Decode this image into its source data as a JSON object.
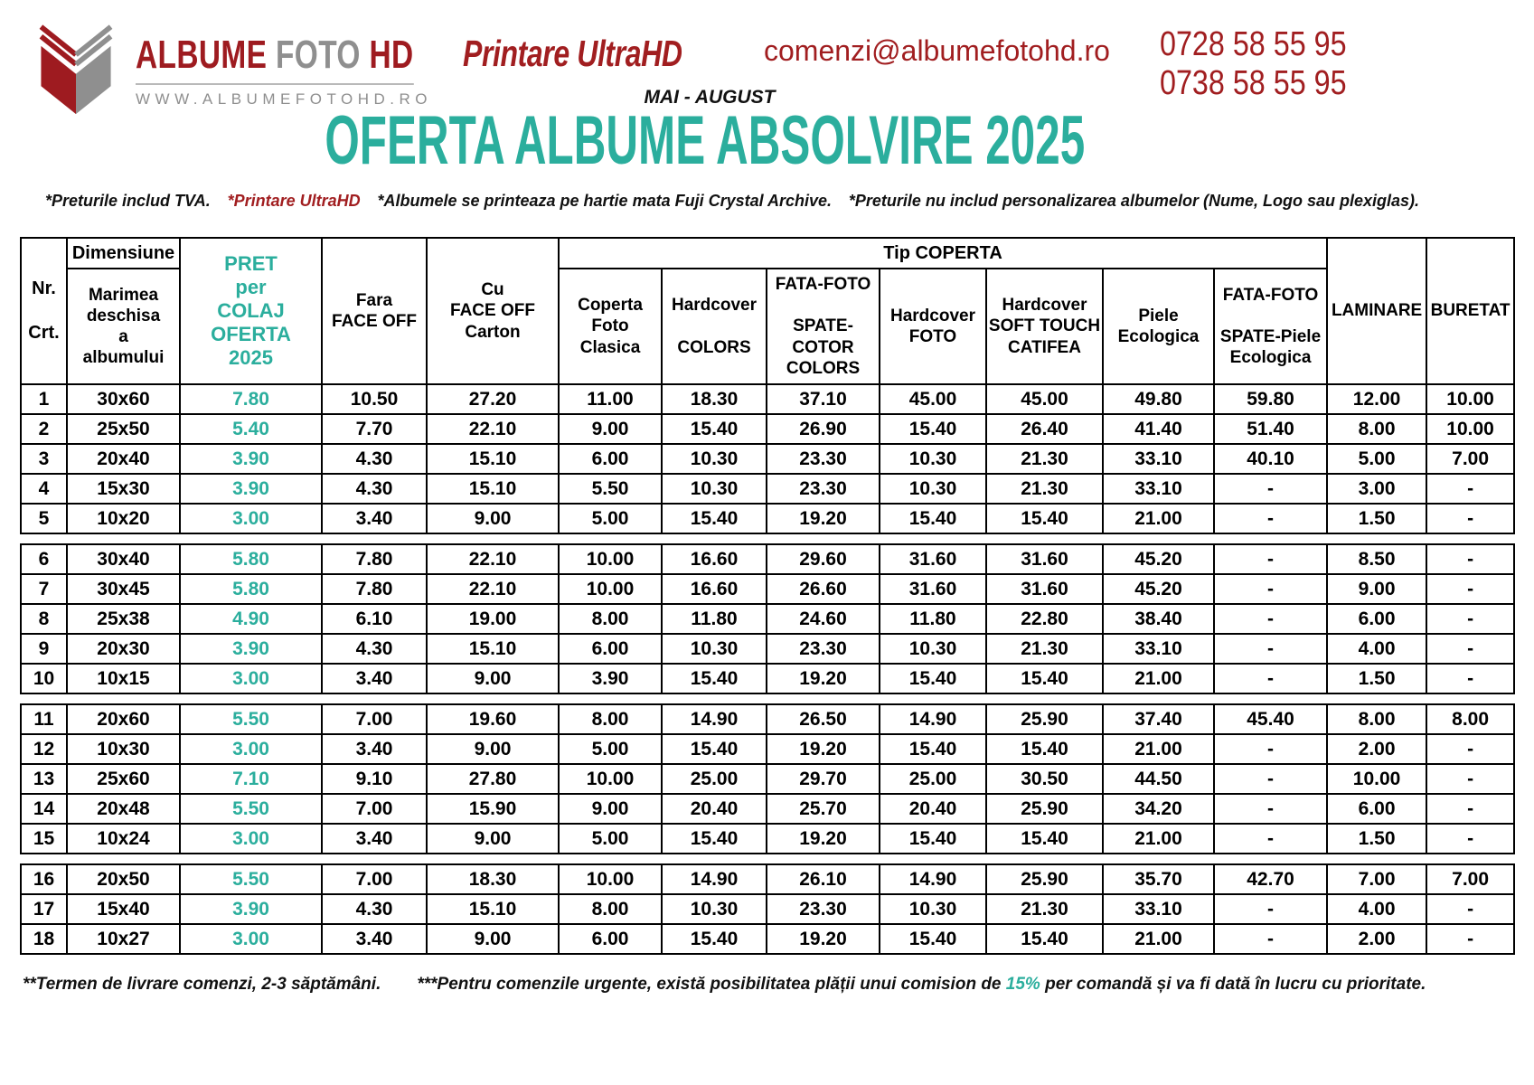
{
  "colors": {
    "red": "#A11E20",
    "teal": "#2BAE9D",
    "gray": "#8F8F8F"
  },
  "icons": {
    "logo": "open-book-logo-icon"
  },
  "header": {
    "brand_word1": "ALBUME",
    "brand_word2": "FOTO",
    "brand_word3": "HD",
    "website": "WWW.ALBUMEFOTOHD.RO",
    "tagline": "Printare UltraHD",
    "email": "comenzi@albumefotohd.ro",
    "phone1": "0728 58 55 95",
    "phone2": "0738 58 55 95",
    "season": "MAI - AUGUST",
    "title": "OFERTA ALBUME ABSOLVIRE 2025",
    "note1": "*Preturile includ TVA.",
    "note2": "*Printare UltraHD",
    "note3": "*Albumele se printeaza pe hartie mata Fuji Crystal Archive.",
    "note4": "*Preturile nu includ personalizarea albumelor (Nume, Logo sau plexiglas)."
  },
  "table": {
    "corner": "Nr.\n\nCrt.",
    "dimension_group": "Dimensiune",
    "dimension_sub": "Marimea\ndeschisa\na\nalbumului",
    "pret_header": "PRET\nper\nCOLAJ\nOFERTA\n2025",
    "fara_header": "Fara\nFACE OFF",
    "cu_header": "Cu\nFACE OFF\nCarton",
    "tip_coperta": "Tip  COPERTA",
    "coperta_cols": [
      "Coperta\nFoto\nClasica",
      "Hardcover\n\nCOLORS",
      "FATA-FOTO\n\nSPATE-COTOR\nCOLORS",
      "Hardcover\nFOTO",
      "Hardcover\nSOFT TOUCH\nCATIFEA",
      "Piele\nEcologica",
      "FATA-FOTO\n\nSPATE-Piele\nEcologica"
    ],
    "laminare_header": "LAMINARE",
    "buretat_header": "BURETAT",
    "groups": [
      [
        {
          "nr": "1",
          "dim": "30x60",
          "pret": "7.80",
          "values": [
            "10.50",
            "27.20",
            "11.00",
            "18.30",
            "37.10",
            "45.00",
            "45.00",
            "49.80",
            "59.80",
            "12.00",
            "10.00"
          ]
        },
        {
          "nr": "2",
          "dim": "25x50",
          "pret": "5.40",
          "values": [
            "7.70",
            "22.10",
            "9.00",
            "15.40",
            "26.90",
            "15.40",
            "26.40",
            "41.40",
            "51.40",
            "8.00",
            "10.00"
          ]
        },
        {
          "nr": "3",
          "dim": "20x40",
          "pret": "3.90",
          "values": [
            "4.30",
            "15.10",
            "6.00",
            "10.30",
            "23.30",
            "10.30",
            "21.30",
            "33.10",
            "40.10",
            "5.00",
            "7.00"
          ]
        },
        {
          "nr": "4",
          "dim": "15x30",
          "pret": "3.90",
          "values": [
            "4.30",
            "15.10",
            "5.50",
            "10.30",
            "23.30",
            "10.30",
            "21.30",
            "33.10",
            "-",
            "3.00",
            "-"
          ]
        },
        {
          "nr": "5",
          "dim": "10x20",
          "pret": "3.00",
          "values": [
            "3.40",
            "9.00",
            "5.00",
            "15.40",
            "19.20",
            "15.40",
            "15.40",
            "21.00",
            "-",
            "1.50",
            "-"
          ]
        }
      ],
      [
        {
          "nr": "6",
          "dim": "30x40",
          "pret": "5.80",
          "values": [
            "7.80",
            "22.10",
            "10.00",
            "16.60",
            "29.60",
            "31.60",
            "31.60",
            "45.20",
            "-",
            "8.50",
            "-"
          ]
        },
        {
          "nr": "7",
          "dim": "30x45",
          "pret": "5.80",
          "values": [
            "7.80",
            "22.10",
            "10.00",
            "16.60",
            "26.60",
            "31.60",
            "31.60",
            "45.20",
            "-",
            "9.00",
            "-"
          ]
        },
        {
          "nr": "8",
          "dim": "25x38",
          "pret": "4.90",
          "values": [
            "6.10",
            "19.00",
            "8.00",
            "11.80",
            "24.60",
            "11.80",
            "22.80",
            "38.40",
            "-",
            "6.00",
            "-"
          ]
        },
        {
          "nr": "9",
          "dim": "20x30",
          "pret": "3.90",
          "values": [
            "4.30",
            "15.10",
            "6.00",
            "10.30",
            "23.30",
            "10.30",
            "21.30",
            "33.10",
            "-",
            "4.00",
            "-"
          ]
        },
        {
          "nr": "10",
          "dim": "10x15",
          "pret": "3.00",
          "values": [
            "3.40",
            "9.00",
            "3.90",
            "15.40",
            "19.20",
            "15.40",
            "15.40",
            "21.00",
            "-",
            "1.50",
            "-"
          ]
        }
      ],
      [
        {
          "nr": "11",
          "dim": "20x60",
          "pret": "5.50",
          "values": [
            "7.00",
            "19.60",
            "8.00",
            "14.90",
            "26.50",
            "14.90",
            "25.90",
            "37.40",
            "45.40",
            "8.00",
            "8.00"
          ]
        },
        {
          "nr": "12",
          "dim": "10x30",
          "pret": "3.00",
          "values": [
            "3.40",
            "9.00",
            "5.00",
            "15.40",
            "19.20",
            "15.40",
            "15.40",
            "21.00",
            "-",
            "2.00",
            "-"
          ]
        },
        {
          "nr": "13",
          "dim": "25x60",
          "pret": "7.10",
          "values": [
            "9.10",
            "27.80",
            "10.00",
            "25.00",
            "29.70",
            "25.00",
            "30.50",
            "44.50",
            "-",
            "10.00",
            "-"
          ]
        },
        {
          "nr": "14",
          "dim": "20x48",
          "pret": "5.50",
          "values": [
            "7.00",
            "15.90",
            "9.00",
            "20.40",
            "25.70",
            "20.40",
            "25.90",
            "34.20",
            "-",
            "6.00",
            "-"
          ]
        },
        {
          "nr": "15",
          "dim": "10x24",
          "pret": "3.00",
          "values": [
            "3.40",
            "9.00",
            "5.00",
            "15.40",
            "19.20",
            "15.40",
            "15.40",
            "21.00",
            "-",
            "1.50",
            "-"
          ]
        }
      ],
      [
        {
          "nr": "16",
          "dim": "20x50",
          "pret": "5.50",
          "values": [
            "7.00",
            "18.30",
            "10.00",
            "14.90",
            "26.10",
            "14.90",
            "25.90",
            "35.70",
            "42.70",
            "7.00",
            "7.00"
          ]
        },
        {
          "nr": "17",
          "dim": "15x40",
          "pret": "3.90",
          "values": [
            "4.30",
            "15.10",
            "8.00",
            "10.30",
            "23.30",
            "10.30",
            "21.30",
            "33.10",
            "-",
            "4.00",
            "-"
          ]
        },
        {
          "nr": "18",
          "dim": "10x27",
          "pret": "3.00",
          "values": [
            "3.40",
            "9.00",
            "6.00",
            "15.40",
            "19.20",
            "15.40",
            "15.40",
            "21.00",
            "-",
            "2.00",
            "-"
          ]
        }
      ]
    ]
  },
  "footer": {
    "note1": "**Termen de livrare comenzi, 2-3 săptămâni.",
    "note2_pre": "***Pentru comenzile urgente, există posibilitatea plății unui comision de ",
    "note2_highlight": "15%",
    "note2_post": " per comandă și va fi dată în lucru cu prioritate."
  }
}
